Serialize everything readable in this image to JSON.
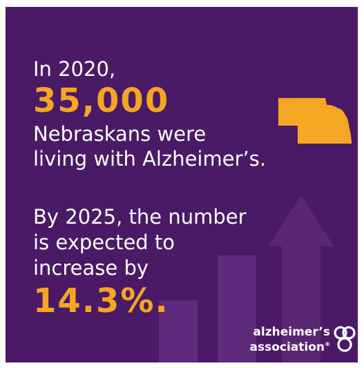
{
  "background_color": "#4a1a66",
  "accent_color": "#f5a623",
  "headline": {
    "intro": "In 2020,",
    "count": "35,000",
    "line_a": "Nebraskans were",
    "line_b": "living with Alzheimer’s."
  },
  "projection": {
    "line_a": "By 2025, the number",
    "line_b": "is expected to",
    "line_c": "increase by",
    "percent": "14.3%."
  },
  "graphic": {
    "state_icon": "nebraska-map-icon",
    "growth_icon": "rising-arrow-icon"
  },
  "logo": {
    "line1": "alzheimer’s",
    "line2": "association",
    "mark": "®"
  }
}
